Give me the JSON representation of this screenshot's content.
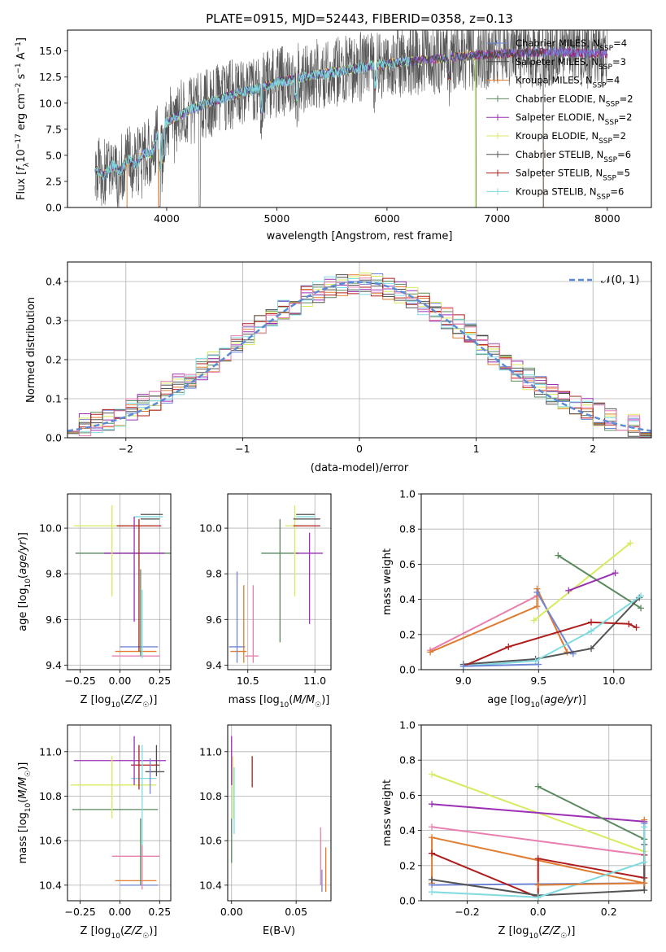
{
  "colors": {
    "Chabrier MILES": "#6f86d6",
    "Salpeter MILES": "#4a4a4a",
    "Kroupa MILES": "#e07b2f",
    "Chabrier ELODIE": "#5a8a5e",
    "Salpeter ELODIE": "#9b30b4",
    "Kroupa ELODIE": "#d9ea5f",
    "Chabrier STELIB": "#555555",
    "Salpeter STELIB": "#b01c1c",
    "Kroupa STELIB": "#7fdbe0",
    "pink": "#e87fb0",
    "normal": "#5b8bd6",
    "grid": "#b0b0b0"
  },
  "chart_data": [
    {
      "type": "line",
      "title": "PLATE=0915, MJD=52443, FIBERID=0358, z=0.13",
      "xlabel": "wavelength [Angstrom, rest frame]",
      "ylabel": "Flux [f_λ 10^-17 erg cm^-2 s^-1 A^-1]",
      "xlim": [
        3100,
        8400
      ],
      "ylim": [
        0,
        17
      ],
      "xticks": [
        4000,
        5000,
        6000,
        7000,
        8000
      ],
      "yticks": [
        0.0,
        2.5,
        5.0,
        7.5,
        10.0,
        12.5,
        15.0
      ],
      "grid": false,
      "legend_position": "right",
      "legend": [
        "Chabrier MILES, N_SSP=4",
        "Salpeter MILES, N_SSP=3",
        "Kroupa MILES, N_SSP=4",
        "Chabrier ELODIE, N_SSP=2",
        "Salpeter ELODIE, N_SSP=2",
        "Kroupa ELODIE, N_SSP=2",
        "Chabrier STELIB, N_SSP=6",
        "Salpeter STELIB, N_SSP=5",
        "Kroupa STELIB, N_SSP=6"
      ],
      "continuum": {
        "x": [
          3400,
          3600,
          3800,
          4000,
          4200,
          4400,
          4600,
          4800,
          5000,
          5200,
          5400,
          5600,
          5800,
          6000,
          6200,
          6400,
          6600,
          6800,
          7000,
          7200,
          7400,
          7600,
          7800,
          8000
        ],
        "y": [
          3.6,
          4.3,
          5.2,
          8.2,
          9.3,
          10.1,
          10.8,
          11.3,
          12.0,
          12.4,
          12.8,
          13.1,
          13.5,
          13.8,
          14.0,
          14.2,
          14.4,
          14.6,
          14.7,
          14.8,
          14.9,
          14.9,
          14.8,
          14.7
        ]
      }
    },
    {
      "type": "histogram",
      "xlabel": "(data-model)/error",
      "ylabel": "Normed distribution",
      "xlim": [
        -2.5,
        2.5
      ],
      "ylim": [
        0,
        0.45
      ],
      "xticks": [
        -2,
        -1,
        0,
        1,
        2
      ],
      "yticks": [
        0.0,
        0.1,
        0.2,
        0.3,
        0.4
      ],
      "grid": true,
      "legend_position": "top-right",
      "legend": [
        "N(0, 1)"
      ],
      "bin_width": 0.1
    },
    {
      "type": "scatter",
      "xlabel": "Z [log10(Z/Z☉)]",
      "ylabel": "age  [log10(age/yr)]",
      "xlim": [
        -0.33,
        0.32
      ],
      "ylim": [
        9.38,
        10.15
      ],
      "xticks": [
        -0.25,
        0.0,
        0.25
      ],
      "yticks": [
        9.4,
        9.6,
        9.8,
        10.0
      ],
      "grid": true,
      "errorbars": [
        {
          "color": "Chabrier MILES",
          "x": 0.12,
          "y": 9.48,
          "xerr": 0.12,
          "yerr": 0.0
        },
        {
          "color": "Kroupa MILES",
          "x": 0.1,
          "y": 9.46,
          "xerr": 0.13,
          "yerr": 0.0
        },
        {
          "color": "pink",
          "x": 0.1,
          "y": 9.44,
          "xerr": 0.15,
          "yerr": 0.0
        },
        {
          "color": "Chabrier ELODIE",
          "x": 0.03,
          "y": 9.89,
          "xerr": 0.31,
          "yerr": 0.0
        },
        {
          "color": "Salpeter ELODIE",
          "x": 0.09,
          "y": 9.89,
          "xerr": 0.19,
          "yerr": 0.0
        },
        {
          "color": "Kroupa ELODIE",
          "x": -0.04,
          "y": 10.01,
          "xerr": 0.25,
          "yerr": 0.0
        },
        {
          "color": "Salpeter STELIB",
          "x": 0.12,
          "y": 10.01,
          "xerr": 0.14,
          "yerr": 0.0
        },
        {
          "color": "Salpeter MILES",
          "x": 0.19,
          "y": 10.04,
          "xerr": 0.06,
          "yerr": 0.0
        },
        {
          "color": "Kroupa STELIB",
          "x": 0.18,
          "y": 10.05,
          "xerr": 0.09,
          "yerr": 0.0
        },
        {
          "color": "Chabrier STELIB",
          "x": 0.2,
          "y": 10.06,
          "xerr": 0.07,
          "yerr": 0.0
        },
        {
          "color": "Kroupa ELODIE",
          "x": -0.05,
          "y": 9.9,
          "xerr": 0.0,
          "yerr": 0.2
        },
        {
          "color": "Salpeter ELODIE",
          "x": 0.09,
          "y": 9.82,
          "xerr": 0.0,
          "yerr": 0.23
        },
        {
          "color": "Salpeter STELIB",
          "x": 0.12,
          "y": 9.75,
          "xerr": 0.0,
          "yerr": 0.29
        },
        {
          "color": "Chabrier ELODIE",
          "x": 0.13,
          "y": 9.63,
          "xerr": 0.0,
          "yerr": 0.19
        },
        {
          "color": "Kroupa STELIB",
          "x": 0.14,
          "y": 9.58,
          "xerr": 0.0,
          "yerr": 0.15
        }
      ]
    },
    {
      "type": "scatter",
      "xlabel": "mass [log10(M/M☉)]",
      "xlim": [
        10.35,
        11.12
      ],
      "ylim": [
        9.38,
        10.15
      ],
      "xticks": [
        10.5,
        11.0
      ],
      "yticks": [
        9.4,
        9.6,
        9.8,
        10.0
      ],
      "grid": true,
      "errorbars": [
        {
          "color": "Chabrier MILES",
          "x": 10.42,
          "y": 9.48,
          "xerr": 0.06,
          "yerr": 0.0
        },
        {
          "color": "Kroupa MILES",
          "x": 10.43,
          "y": 9.46,
          "xerr": 0.06,
          "yerr": 0.0
        },
        {
          "color": "pink",
          "x": 10.53,
          "y": 9.44,
          "xerr": 0.05,
          "yerr": 0.0
        },
        {
          "color": "Chabrier MILES",
          "x": 10.42,
          "y": 9.61,
          "xerr": 0.0,
          "yerr": 0.2
        },
        {
          "color": "Kroupa MILES",
          "x": 10.47,
          "y": 9.58,
          "xerr": 0.0,
          "yerr": 0.17
        },
        {
          "color": "pink",
          "x": 10.54,
          "y": 9.58,
          "xerr": 0.0,
          "yerr": 0.17
        },
        {
          "color": "Chabrier ELODIE",
          "x": 10.74,
          "y": 9.89,
          "xerr": 0.14,
          "yerr": 0.0
        },
        {
          "color": "Chabrier ELODIE",
          "x": 10.74,
          "y": 9.77,
          "xerr": 0.0,
          "yerr": 0.27
        },
        {
          "color": "Salpeter ELODIE",
          "x": 10.96,
          "y": 9.89,
          "xerr": 0.1,
          "yerr": 0.0
        },
        {
          "color": "Salpeter ELODIE",
          "x": 10.96,
          "y": 9.78,
          "xerr": 0.0,
          "yerr": 0.2
        },
        {
          "color": "Kroupa ELODIE",
          "x": 10.85,
          "y": 9.9,
          "xerr": 0.0,
          "yerr": 0.2
        },
        {
          "color": "Kroupa ELODIE",
          "x": 10.84,
          "y": 10.01,
          "xerr": 0.06,
          "yerr": 0.0
        },
        {
          "color": "Salpeter STELIB",
          "x": 10.94,
          "y": 10.01,
          "xerr": 0.1,
          "yerr": 0.0
        },
        {
          "color": "Salpeter MILES",
          "x": 10.94,
          "y": 10.04,
          "xerr": 0.1,
          "yerr": 0.0
        },
        {
          "color": "Kroupa STELIB",
          "x": 10.93,
          "y": 10.05,
          "xerr": 0.07,
          "yerr": 0.0
        },
        {
          "color": "Chabrier STELIB",
          "x": 10.93,
          "y": 10.06,
          "xerr": 0.07,
          "yerr": 0.0
        }
      ]
    },
    {
      "type": "line",
      "xlabel": "age  [log10(age/yr)]",
      "ylabel": "mass weight",
      "xlim": [
        8.72,
        10.25
      ],
      "ylim": [
        0.0,
        1.0
      ],
      "xticks": [
        9.0,
        9.5,
        10.0
      ],
      "yticks": [
        0.0,
        0.2,
        0.4,
        0.6,
        0.8,
        1.0
      ],
      "grid": true,
      "series": [
        {
          "color": "pink",
          "x": [
            8.78,
            9.49
          ],
          "y": [
            0.11,
            0.42
          ]
        },
        {
          "color": "Kroupa MILES",
          "x": [
            8.78,
            9.49,
            9.49,
            9.69
          ],
          "y": [
            0.1,
            0.36,
            0.46,
            0.1
          ]
        },
        {
          "color": "Chabrier MILES",
          "x": [
            9.49,
            9.73
          ],
          "y": [
            0.44,
            0.09
          ]
        },
        {
          "color": "Kroupa ELODIE",
          "x": [
            9.47,
            10.11
          ],
          "y": [
            0.28,
            0.72
          ]
        },
        {
          "color": "Chabrier ELODIE",
          "x": [
            9.63,
            10.18
          ],
          "y": [
            0.65,
            0.35
          ]
        },
        {
          "color": "Salpeter ELODIE",
          "x": [
            9.7,
            10.01
          ],
          "y": [
            0.45,
            0.55
          ]
        },
        {
          "color": "Chabrier STELIB",
          "x": [
            9.0,
            9.48,
            9.85,
            10.17
          ],
          "y": [
            0.03,
            0.06,
            0.12,
            0.41
          ]
        },
        {
          "color": "Salpeter STELIB",
          "x": [
            9.0,
            9.3,
            9.85,
            10.1,
            10.15
          ],
          "y": [
            0.02,
            0.13,
            0.27,
            0.26,
            0.24
          ]
        },
        {
          "color": "Kroupa STELIB",
          "x": [
            9.0,
            9.48,
            9.85,
            10.18
          ],
          "y": [
            0.02,
            0.05,
            0.22,
            0.42
          ]
        },
        {
          "color": "Chabrier MILES",
          "x": [
            9.0,
            9.5
          ],
          "y": [
            0.02,
            0.03
          ]
        }
      ]
    },
    {
      "type": "scatter",
      "xlabel": "Z [log10(Z/Z☉)]",
      "ylabel": "mass [log10(M/M☉)]",
      "xlim": [
        -0.33,
        0.32
      ],
      "ylim": [
        10.33,
        11.12
      ],
      "xticks": [
        -0.25,
        0.0,
        0.25
      ],
      "yticks": [
        10.4,
        10.6,
        10.8,
        11.0
      ],
      "grid": true,
      "errorbars": [
        {
          "color": "Chabrier MILES",
          "x": 0.12,
          "y": 10.4,
          "xerr": 0.12,
          "yerr": 0.0
        },
        {
          "color": "Kroupa MILES",
          "x": 0.1,
          "y": 10.42,
          "xerr": 0.13,
          "yerr": 0.0
        },
        {
          "color": "pink",
          "x": 0.1,
          "y": 10.53,
          "xerr": 0.15,
          "yerr": 0.0
        },
        {
          "color": "Chabrier ELODIE",
          "x": -0.03,
          "y": 10.74,
          "xerr": 0.27,
          "yerr": 0.0
        },
        {
          "color": "Kroupa ELODIE",
          "x": -0.04,
          "y": 10.85,
          "xerr": 0.27,
          "yerr": 0.0
        },
        {
          "color": "Kroupa STELIB",
          "x": 0.15,
          "y": 10.88,
          "xerr": 0.08,
          "yerr": 0.0
        },
        {
          "color": "Chabrier STELIB",
          "x": 0.22,
          "y": 10.91,
          "xerr": 0.06,
          "yerr": 0.0
        },
        {
          "color": "Salpeter STELIB",
          "x": 0.16,
          "y": 10.94,
          "xerr": 0.09,
          "yerr": 0.0
        },
        {
          "color": "Salpeter ELODIE",
          "x": 0.0,
          "y": 10.96,
          "xerr": 0.29,
          "yerr": 0.0
        },
        {
          "color": "Kroupa ELODIE",
          "x": -0.05,
          "y": 10.84,
          "xerr": 0.0,
          "yerr": 0.14
        },
        {
          "color": "Salpeter ELODIE",
          "x": 0.09,
          "y": 10.96,
          "xerr": 0.0,
          "yerr": 0.11
        },
        {
          "color": "Salpeter STELIB",
          "x": 0.12,
          "y": 10.93,
          "xerr": 0.0,
          "yerr": 0.1
        },
        {
          "color": "Chabrier ELODIE",
          "x": 0.13,
          "y": 10.55,
          "xerr": 0.0,
          "yerr": 0.15
        },
        {
          "color": "Kroupa STELIB",
          "x": 0.14,
          "y": 10.78,
          "xerr": 0.0,
          "yerr": 0.25
        },
        {
          "color": "pink",
          "x": 0.14,
          "y": 10.48,
          "xerr": 0.0,
          "yerr": 0.1
        },
        {
          "color": "Chabrier MILES",
          "x": 0.19,
          "y": 10.89,
          "xerr": 0.0,
          "yerr": 0.08
        },
        {
          "color": "Salpeter MILES",
          "x": 0.23,
          "y": 10.96,
          "xerr": 0.0,
          "yerr": 0.07
        }
      ]
    },
    {
      "type": "scatter",
      "xlabel": "E(B-V)",
      "xlim": [
        -0.003,
        0.077
      ],
      "ylim": [
        10.33,
        11.12
      ],
      "xticks": [
        0.0,
        0.05
      ],
      "yticks": [
        10.4,
        10.6,
        10.8,
        11.0
      ],
      "grid": true,
      "errorbars": [
        {
          "color": "Salpeter ELODIE",
          "x": 0.0,
          "y": 10.96,
          "xerr": 0.0,
          "yerr": 0.11
        },
        {
          "color": "Kroupa ELODIE",
          "x": 0.001,
          "y": 10.84,
          "xerr": 0.0,
          "yerr": 0.14
        },
        {
          "color": "Kroupa STELIB",
          "x": 0.002,
          "y": 10.78,
          "xerr": 0.0,
          "yerr": 0.15
        },
        {
          "color": "Chabrier ELODIE",
          "x": 0.0,
          "y": 10.6,
          "xerr": 0.0,
          "yerr": 0.1
        },
        {
          "color": "Salpeter STELIB",
          "x": 0.016,
          "y": 10.91,
          "xerr": 0.0,
          "yerr": 0.07
        },
        {
          "color": "pink",
          "x": 0.069,
          "y": 10.53,
          "xerr": 0.0,
          "yerr": 0.13
        },
        {
          "color": "Chabrier MILES",
          "x": 0.07,
          "y": 10.42,
          "xerr": 0.0,
          "yerr": 0.05
        },
        {
          "color": "Kroupa MILES",
          "x": 0.073,
          "y": 10.47,
          "xerr": 0.0,
          "yerr": 0.1
        }
      ]
    },
    {
      "type": "line",
      "xlabel": "Z [log10(Z/Z☉)]",
      "ylabel": "mass weight",
      "xlim": [
        -0.33,
        0.32
      ],
      "ylim": [
        0.0,
        1.0
      ],
      "xticks": [
        -0.2,
        0.0,
        0.2
      ],
      "yticks": [
        0.0,
        0.2,
        0.4,
        0.6,
        0.8,
        1.0
      ],
      "grid": true,
      "series": [
        {
          "color": "Kroupa ELODIE",
          "x": [
            -0.3,
            0.3
          ],
          "y": [
            0.72,
            0.28
          ]
        },
        {
          "color": "Salpeter ELODIE",
          "x": [
            -0.3,
            0.3
          ],
          "y": [
            0.55,
            0.45
          ]
        },
        {
          "color": "pink",
          "x": [
            -0.3,
            0.3
          ],
          "y": [
            0.42,
            0.26
          ]
        },
        {
          "color": "Chabrier ELODIE",
          "x": [
            0.0,
            0.3
          ],
          "y": [
            0.65,
            0.35
          ]
        },
        {
          "color": "Kroupa MILES",
          "x": [
            -0.3,
            -0.3,
            0.3,
            0.3
          ],
          "y": [
            0.1,
            0.36,
            0.1,
            0.46
          ]
        },
        {
          "color": "Chabrier MILES",
          "x": [
            -0.3,
            0.3,
            0.3
          ],
          "y": [
            0.09,
            0.1,
            0.44
          ]
        },
        {
          "color": "Salpeter STELIB",
          "x": [
            -0.3,
            0.0,
            0.0,
            0.3,
            0.3
          ],
          "y": [
            0.27,
            0.02,
            0.24,
            0.13,
            0.26
          ]
        },
        {
          "color": "Chabrier STELIB",
          "x": [
            -0.3,
            0.0,
            0.3,
            0.3
          ],
          "y": [
            0.12,
            0.03,
            0.06,
            0.32
          ]
        },
        {
          "color": "Kroupa STELIB",
          "x": [
            -0.3,
            0.0,
            0.3,
            0.3
          ],
          "y": [
            0.05,
            0.02,
            0.22,
            0.42
          ]
        },
        {
          "color": "Kroupa MILES",
          "x": [
            0.0,
            0.3
          ],
          "y": [
            0.09,
            0.1
          ]
        }
      ]
    }
  ]
}
